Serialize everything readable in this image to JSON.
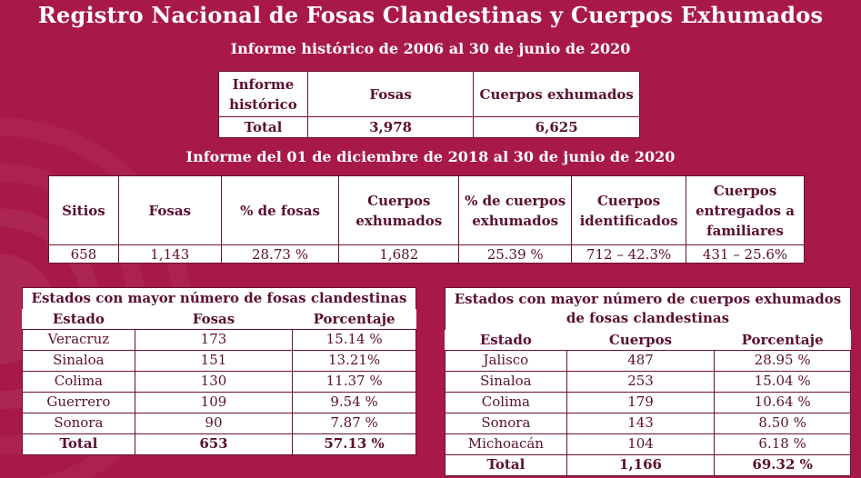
{
  "title": "Registro Nacional de Fosas Clandestinas y Cuerpos Exhumados",
  "historic": {
    "subtitle": "Informe histórico de 2006 al 30 de junio de 2020",
    "headers": [
      "Informe histórico",
      "Fosas",
      "Cuerpos exhumados"
    ],
    "row": [
      "Total",
      "3,978",
      "6,625"
    ]
  },
  "recent": {
    "subtitle": "Informe del 01 de diciembre de 2018 al 30 de junio de 2020",
    "headers": [
      "Sitios",
      "Fosas",
      "% de fosas",
      "Cuerpos exhumados",
      "% de cuerpos exhumados",
      "Cuerpos identificados",
      "Cuerpos entregados a familiares"
    ],
    "row": [
      "658",
      "1,143",
      "28.73 %",
      "1,682",
      "25.39 %",
      "712 – 42.3%",
      "431 – 25.6%"
    ]
  },
  "fosas_estados": {
    "caption": "Estados con mayor número de fosas clandestinas",
    "headers": [
      "Estado",
      "Fosas",
      "Porcentaje"
    ],
    "rows": [
      [
        "Veracruz",
        "173",
        "15.14 %"
      ],
      [
        "Sinaloa",
        "151",
        "13.21%"
      ],
      [
        "Colima",
        "130",
        "11.37 %"
      ],
      [
        "Guerrero",
        "109",
        "9.54 %"
      ],
      [
        "Sonora",
        "90",
        "7.87 %"
      ]
    ],
    "total": [
      "Total",
      "653",
      "57.13 %"
    ]
  },
  "cuerpos_estados": {
    "caption": "Estados con mayor número de cuerpos exhumados de fosas clandestinas",
    "headers": [
      "Estado",
      "Cuerpos",
      "Porcentaje"
    ],
    "rows": [
      [
        "Jalisco",
        "487",
        "28.95 %"
      ],
      [
        "Sinaloa",
        "253",
        "15.04 %"
      ],
      [
        "Colima",
        "179",
        "10.64 %"
      ],
      [
        "Sonora",
        "143",
        "8.50 %"
      ],
      [
        "Michoacán",
        "104",
        "6.18 %"
      ]
    ],
    "total": [
      "Total",
      "1,166",
      "69.32 %"
    ]
  },
  "colors": {
    "background": "#a8194a",
    "text": "#5b1030",
    "table_bg": "#ffffff"
  }
}
